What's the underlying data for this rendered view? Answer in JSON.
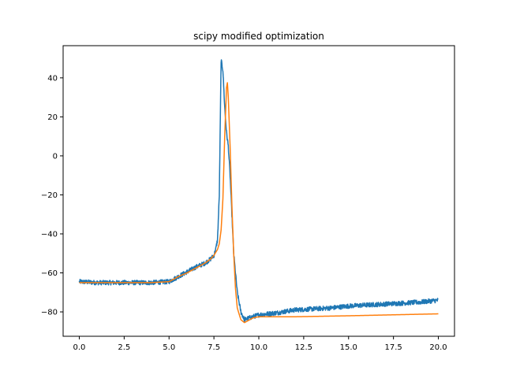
{
  "chart_data": {
    "type": "line",
    "title": "scipy modified optimization",
    "xlabel": "",
    "ylabel": "",
    "xlim": [
      -0.9,
      20.9
    ],
    "ylim": [
      -92.5,
      56.5
    ],
    "xticks": [
      0.0,
      2.5,
      5.0,
      7.5,
      10.0,
      12.5,
      15.0,
      17.5,
      20.0
    ],
    "xtick_labels": [
      "0.0",
      "2.5",
      "5.0",
      "7.5",
      "10.0",
      "12.5",
      "15.0",
      "17.5",
      "20.0"
    ],
    "yticks": [
      -80,
      -60,
      -40,
      -20,
      0,
      20,
      40
    ],
    "ytick_labels": [
      "−80",
      "−60",
      "−40",
      "−20",
      "0",
      "20",
      "40"
    ],
    "grid": false,
    "series": [
      {
        "color": "#1f77b4",
        "noise": 1.2,
        "x": [
          0,
          1,
          2,
          3,
          4,
          5,
          5.5,
          6,
          6.5,
          7,
          7.3,
          7.5,
          7.6,
          7.7,
          7.8,
          7.9,
          8.0,
          8.1,
          8.2,
          8.3,
          8.4,
          8.5,
          8.6,
          8.8,
          9.0,
          9.2,
          9.5,
          10,
          11,
          12,
          13,
          14,
          15,
          16,
          17,
          18,
          19,
          20
        ],
        "y": [
          -64.5,
          -65,
          -65,
          -65,
          -65,
          -64.5,
          -62,
          -59.5,
          -57,
          -55,
          -53,
          -51,
          -48,
          -43,
          -20,
          49,
          44,
          25,
          12,
          5,
          -10,
          -30,
          -50,
          -70,
          -80,
          -84,
          -83,
          -81.5,
          -80.5,
          -79,
          -78.5,
          -78,
          -77,
          -76.5,
          -76,
          -75.5,
          -75,
          -74
        ]
      },
      {
        "color": "#ff7f0e",
        "noise": 0,
        "x": [
          0,
          2,
          4,
          5,
          5.5,
          6,
          6.5,
          7,
          7.3,
          7.5,
          7.7,
          7.8,
          7.9,
          8.0,
          8.1,
          8.2,
          8.25,
          8.3,
          8.4,
          8.5,
          8.6,
          8.7,
          8.8,
          9.0,
          9.2,
          9.4,
          9.7,
          10,
          12,
          15,
          20
        ],
        "y": [
          -65,
          -65,
          -65,
          -64.5,
          -62,
          -60,
          -57.5,
          -55,
          -53,
          -51,
          -48,
          -45,
          -38,
          -22,
          10,
          35,
          37.5,
          30,
          5,
          -25,
          -50,
          -68,
          -78,
          -84,
          -85.5,
          -84.5,
          -83,
          -82.5,
          -82.5,
          -82,
          -81
        ]
      }
    ]
  }
}
